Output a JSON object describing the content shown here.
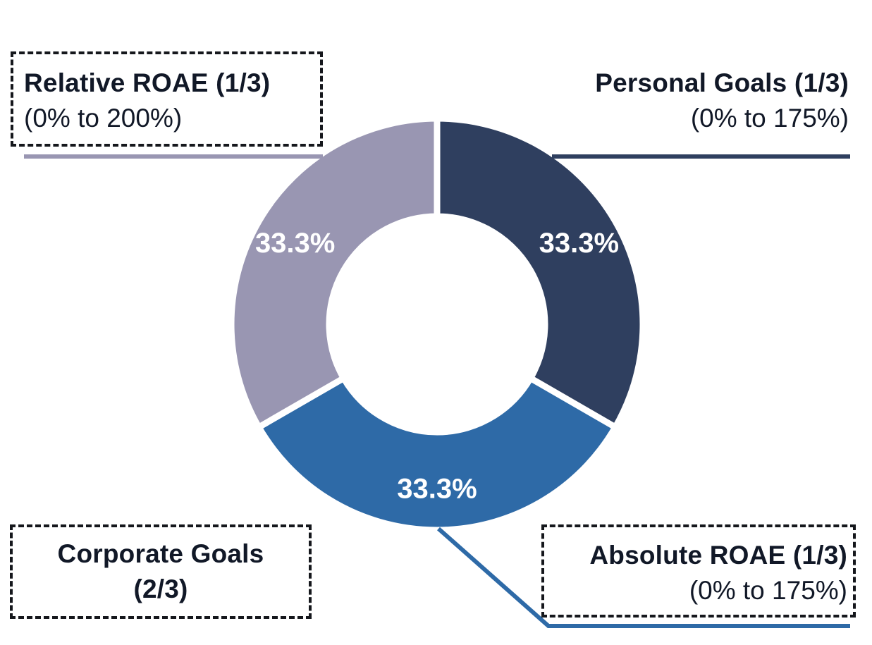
{
  "chart_data": {
    "type": "pie",
    "subtype": "donut",
    "slices": [
      {
        "name": "Personal Goals (1/3)",
        "range": "(0% to 175%)",
        "value": 33.3,
        "label": "33.3%",
        "color": "#2f3f5f"
      },
      {
        "name": "Absolute ROAE (1/3)",
        "range": "(0% to 175%)",
        "value": 33.3,
        "label": "33.3%",
        "color": "#2e6aa7"
      },
      {
        "name": "Relative ROAE (1/3)",
        "range": "(0% to 200%)",
        "value": 33.3,
        "label": "33.3%",
        "color": "#9996b2"
      }
    ],
    "group_label": "Corporate Goals (2/3)",
    "group_label_lines": [
      "Corporate Goals",
      "(2/3)"
    ]
  },
  "colors": {
    "personal": "#2f3f5f",
    "absolute": "#2e6aa7",
    "relative": "#9996b2",
    "text": "#111827",
    "box_border": "#15171c"
  }
}
